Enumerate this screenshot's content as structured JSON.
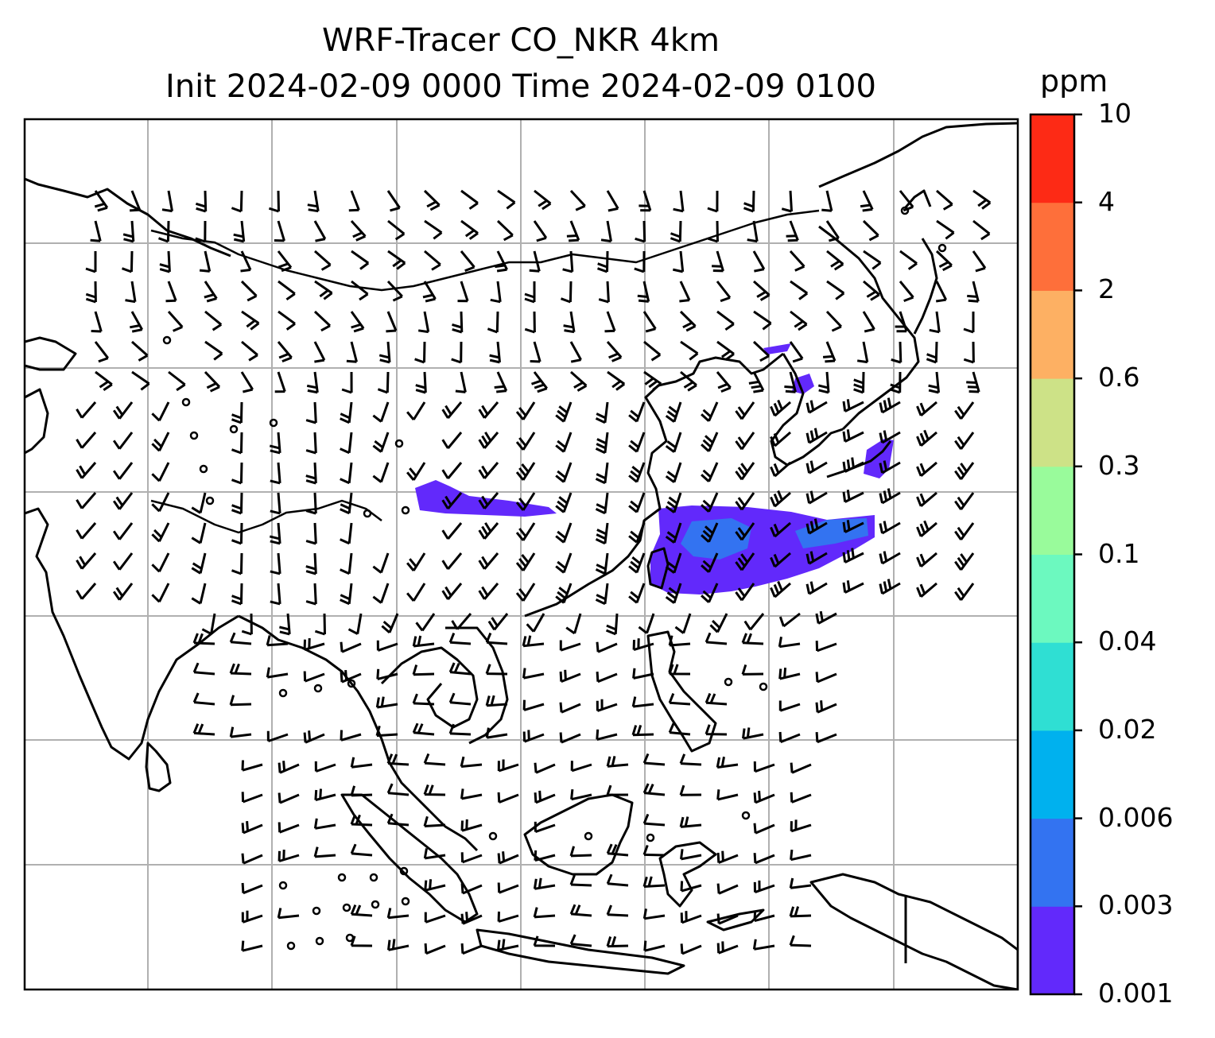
{
  "title": {
    "line1": "WRF-Tracer CO_NKR 4km",
    "line2": "Init 2024-02-09 0000 Time 2024-02-09 0100"
  },
  "colorbar": {
    "unit": "ppm",
    "levels": [
      "0.001",
      "0.003",
      "0.006",
      "0.02",
      "0.04",
      "0.1",
      "0.3",
      "0.6",
      "2",
      "4",
      "10"
    ],
    "colors": [
      "#6229fb",
      "#3373f1",
      "#00b1ee",
      "#2fdfd3",
      "#6cf9bf",
      "#99fb9b",
      "#cde287",
      "#fdb063",
      "#fe6f3a",
      "#fd2a15"
    ]
  },
  "map": {
    "field": "CO_NKR tracer concentration",
    "plume_colors": {
      "low": "#6229fb",
      "mid": "#3373f1"
    },
    "gridline_color": "#b0b0b0",
    "coastline_color": "#000000"
  }
}
